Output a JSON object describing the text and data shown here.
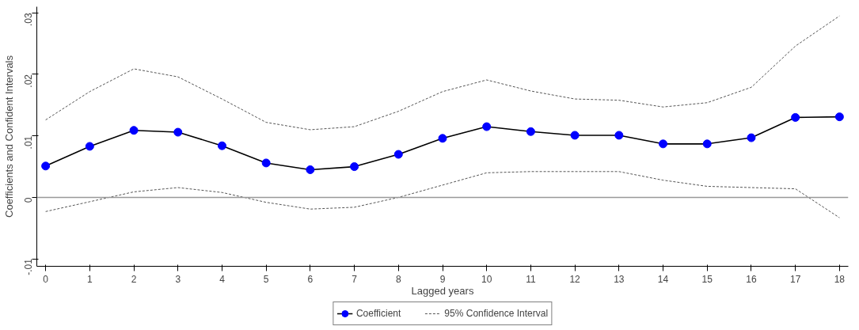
{
  "chart_data": {
    "type": "line",
    "xlabel": "Lagged years",
    "ylabel": "Coefficients and Confident Intervals",
    "x": [
      0,
      1,
      2,
      3,
      4,
      5,
      6,
      7,
      8,
      9,
      10,
      11,
      12,
      13,
      14,
      15,
      16,
      17,
      18
    ],
    "series": [
      {
        "name": "Coefficient",
        "color": "#0000ff",
        "marker": "circle",
        "line_style": "solid",
        "values": [
          0.0051,
          0.0083,
          0.0109,
          0.0106,
          0.0084,
          0.0056,
          0.0045,
          0.005,
          0.007,
          0.0096,
          0.0115,
          0.0107,
          0.0101,
          0.0101,
          0.0087,
          0.0087,
          0.0097,
          0.013,
          0.0131
        ]
      },
      {
        "name": "95% Confidence Interval",
        "color": "#555555",
        "marker": "none",
        "line_style": "dashed",
        "values": [
          0.0126,
          0.0172,
          0.0209,
          0.0196,
          0.016,
          0.0122,
          0.011,
          0.0115,
          0.014,
          0.0172,
          0.0191,
          0.0173,
          0.016,
          0.0158,
          0.0147,
          0.0154,
          0.0179,
          0.0246,
          0.0295
        ]
      },
      {
        "color": "#555555",
        "marker": "none",
        "line_style": "dashed",
        "values": [
          -0.0023,
          -0.0007,
          0.0009,
          0.0016,
          0.0008,
          -0.0008,
          -0.0019,
          -0.0016,
          0.0,
          0.002,
          0.004,
          0.0042,
          0.0042,
          0.0042,
          0.0028,
          0.0018,
          0.0016,
          0.0014,
          -0.0033
        ]
      }
    ],
    "xlim": [
      -0.2,
      18.2
    ],
    "ylim": [
      -0.0112,
      0.031
    ],
    "xticks": [
      0,
      1,
      2,
      3,
      4,
      5,
      6,
      7,
      8,
      9,
      10,
      11,
      12,
      13,
      14,
      15,
      16,
      17,
      18
    ],
    "yticks": [
      {
        "value": -0.01,
        "label": "-.01"
      },
      0,
      {
        "value": 0.01,
        "label": ".01"
      },
      {
        "value": 0.02,
        "label": ".02"
      },
      {
        "value": 0.03,
        "label": ".03"
      }
    ],
    "ref_lines": [
      {
        "axis": "y",
        "value": 0,
        "color": "#999999"
      }
    ],
    "grid": false,
    "legend": "bottom"
  }
}
